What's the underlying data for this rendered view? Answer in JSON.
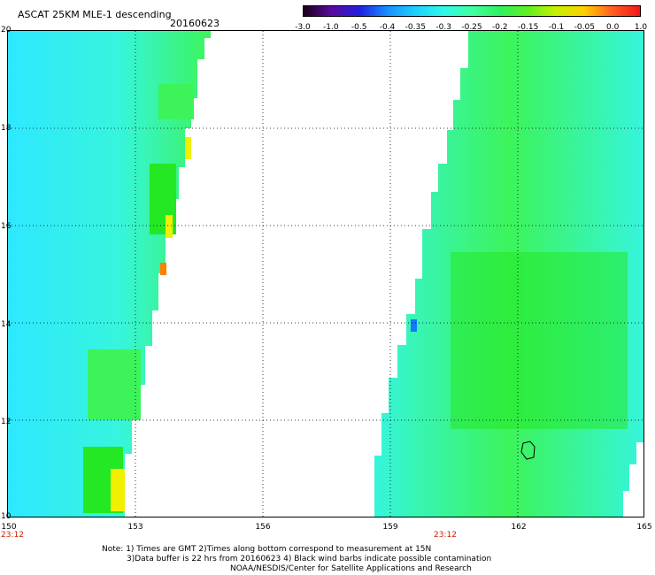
{
  "header": {
    "title": "ASCAT 25KM MLE-1 descending",
    "date": "20160623"
  },
  "colorbar": {
    "labels": [
      "-3.0",
      "-1.0",
      "-0.5",
      "-0.4",
      "-0.35",
      "-0.3",
      "-0.25",
      "-0.2",
      "-0.15",
      "-0.1",
      "-0.05",
      "0.0",
      "1.0"
    ],
    "colors": [
      "#1a001a",
      "#5a0aa0",
      "#2020e0",
      "#1890ff",
      "#20d0ff",
      "#30f8e8",
      "#40ffa0",
      "#30f060",
      "#60f020",
      "#c8f000",
      "#ffd000",
      "#ff6020",
      "#f01818"
    ]
  },
  "map": {
    "lon_labels": [
      "150",
      "153",
      "156",
      "159",
      "162",
      "165"
    ],
    "lat_labels": [
      "20",
      "18",
      "16",
      "14",
      "12",
      "10"
    ],
    "time_labels": [
      "23:12",
      "23:12"
    ],
    "swath_colors": {
      "cyan": "#36f5dd",
      "aqua": "#2ee8ff",
      "green": "#3cf45a",
      "lime": "#24e824",
      "yellow": "#f0f000",
      "orange": "#ff8000",
      "blue": "#1478ff"
    }
  },
  "notes": {
    "line1": "Note: 1) Times are GMT 2)Times along bottom correspond to measurement at 15N",
    "line2": "3)Data buffer is 22 hrs from 20160623 4) Black wind barbs indicate possible contamination",
    "line3": "NOAA/NESDIS/Center for Satellite Applications and Research"
  }
}
